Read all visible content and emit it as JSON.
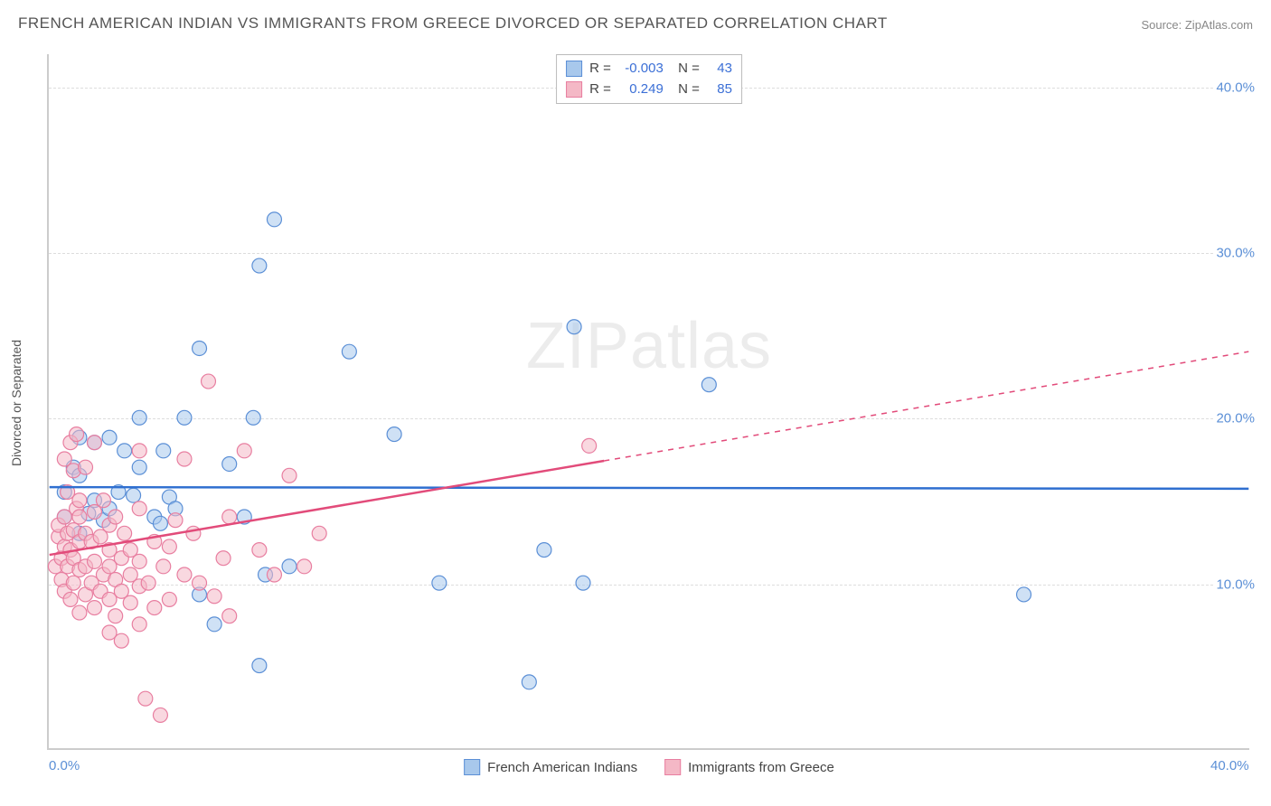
{
  "title": "FRENCH AMERICAN INDIAN VS IMMIGRANTS FROM GREECE DIVORCED OR SEPARATED CORRELATION CHART",
  "source": "Source: ZipAtlas.com",
  "ylabel": "Divorced or Separated",
  "watermark": "ZIPatlas",
  "chart": {
    "type": "scatter",
    "xlim": [
      0,
      40
    ],
    "ylim": [
      0,
      42
    ],
    "xticks": [
      {
        "v": 0,
        "label": "0.0%"
      },
      {
        "v": 40,
        "label": "40.0%"
      }
    ],
    "yticks": [
      {
        "v": 10,
        "label": "10.0%"
      },
      {
        "v": 20,
        "label": "20.0%"
      },
      {
        "v": 30,
        "label": "30.0%"
      },
      {
        "v": 40,
        "label": "40.0%"
      }
    ],
    "marker_radius": 8,
    "marker_opacity": 0.55,
    "background_color": "#ffffff",
    "grid_color": "#dddddd"
  },
  "series": [
    {
      "name": "French American Indians",
      "fill": "#a8c8ec",
      "stroke": "#5b8fd6",
      "line_color": "#2f6fd0",
      "R": "-0.003",
      "N": "43",
      "trend": {
        "x1": 0,
        "y1": 15.8,
        "x2": 40,
        "y2": 15.7,
        "extrapolate_from": 40
      },
      "points": [
        [
          0.5,
          14.0
        ],
        [
          0.5,
          15.5
        ],
        [
          0.8,
          17.0
        ],
        [
          1.0,
          13.0
        ],
        [
          1.0,
          16.5
        ],
        [
          1.0,
          18.8
        ],
        [
          1.3,
          14.2
        ],
        [
          1.5,
          15.0
        ],
        [
          1.5,
          18.5
        ],
        [
          1.8,
          13.8
        ],
        [
          2.0,
          14.5
        ],
        [
          2.0,
          18.8
        ],
        [
          2.3,
          15.5
        ],
        [
          2.5,
          18.0
        ],
        [
          2.8,
          15.3
        ],
        [
          3.0,
          17.0
        ],
        [
          3.0,
          20.0
        ],
        [
          3.5,
          14.0
        ],
        [
          3.7,
          13.6
        ],
        [
          3.8,
          18.0
        ],
        [
          4.0,
          15.2
        ],
        [
          4.2,
          14.5
        ],
        [
          4.5,
          20.0
        ],
        [
          5.0,
          9.3
        ],
        [
          5.0,
          24.2
        ],
        [
          5.5,
          7.5
        ],
        [
          6.0,
          17.2
        ],
        [
          6.5,
          14.0
        ],
        [
          6.8,
          20.0
        ],
        [
          7.0,
          5.0
        ],
        [
          7.0,
          29.2
        ],
        [
          7.2,
          10.5
        ],
        [
          7.5,
          32.0
        ],
        [
          8.0,
          11.0
        ],
        [
          10.0,
          24.0
        ],
        [
          11.5,
          19.0
        ],
        [
          13.0,
          10.0
        ],
        [
          16.0,
          4.0
        ],
        [
          16.5,
          12.0
        ],
        [
          17.5,
          25.5
        ],
        [
          22.0,
          22.0
        ],
        [
          32.5,
          9.3
        ],
        [
          17.8,
          10.0
        ]
      ]
    },
    {
      "name": "Immigrants from Greece",
      "fill": "#f4b8c6",
      "stroke": "#e87ea0",
      "line_color": "#e24b7a",
      "R": "0.249",
      "N": "85",
      "trend": {
        "x1": 0,
        "y1": 11.7,
        "x2": 40,
        "y2": 24.0,
        "extrapolate_from": 18.5
      },
      "points": [
        [
          0.2,
          11.0
        ],
        [
          0.3,
          12.8
        ],
        [
          0.3,
          13.5
        ],
        [
          0.4,
          11.5
        ],
        [
          0.4,
          10.2
        ],
        [
          0.5,
          9.5
        ],
        [
          0.5,
          12.2
        ],
        [
          0.5,
          14.0
        ],
        [
          0.5,
          17.5
        ],
        [
          0.6,
          11.0
        ],
        [
          0.6,
          13.0
        ],
        [
          0.6,
          15.5
        ],
        [
          0.7,
          9.0
        ],
        [
          0.7,
          12.0
        ],
        [
          0.7,
          18.5
        ],
        [
          0.8,
          10.0
        ],
        [
          0.8,
          11.5
        ],
        [
          0.8,
          13.2
        ],
        [
          0.8,
          16.8
        ],
        [
          0.9,
          14.5
        ],
        [
          0.9,
          19.0
        ],
        [
          1.0,
          8.2
        ],
        [
          1.0,
          10.8
        ],
        [
          1.0,
          12.5
        ],
        [
          1.0,
          14.0
        ],
        [
          1.0,
          15.0
        ],
        [
          1.2,
          9.3
        ],
        [
          1.2,
          11.0
        ],
        [
          1.2,
          13.0
        ],
        [
          1.2,
          17.0
        ],
        [
          1.4,
          10.0
        ],
        [
          1.4,
          12.5
        ],
        [
          1.5,
          8.5
        ],
        [
          1.5,
          11.3
        ],
        [
          1.5,
          14.3
        ],
        [
          1.5,
          18.5
        ],
        [
          1.7,
          9.5
        ],
        [
          1.7,
          12.8
        ],
        [
          1.8,
          10.5
        ],
        [
          1.8,
          15.0
        ],
        [
          2.0,
          7.0
        ],
        [
          2.0,
          9.0
        ],
        [
          2.0,
          11.0
        ],
        [
          2.0,
          12.0
        ],
        [
          2.0,
          13.5
        ],
        [
          2.2,
          8.0
        ],
        [
          2.2,
          10.2
        ],
        [
          2.2,
          14.0
        ],
        [
          2.4,
          6.5
        ],
        [
          2.4,
          9.5
        ],
        [
          2.4,
          11.5
        ],
        [
          2.5,
          13.0
        ],
        [
          2.7,
          8.8
        ],
        [
          2.7,
          10.5
        ],
        [
          2.7,
          12.0
        ],
        [
          3.0,
          7.5
        ],
        [
          3.0,
          9.8
        ],
        [
          3.0,
          11.3
        ],
        [
          3.0,
          14.5
        ],
        [
          3.0,
          18.0
        ],
        [
          3.2,
          3.0
        ],
        [
          3.3,
          10.0
        ],
        [
          3.5,
          12.5
        ],
        [
          3.5,
          8.5
        ],
        [
          3.7,
          2.0
        ],
        [
          3.8,
          11.0
        ],
        [
          4.0,
          12.2
        ],
        [
          4.0,
          9.0
        ],
        [
          4.2,
          13.8
        ],
        [
          4.5,
          10.5
        ],
        [
          4.5,
          17.5
        ],
        [
          4.8,
          13.0
        ],
        [
          5.0,
          10.0
        ],
        [
          5.3,
          22.2
        ],
        [
          5.5,
          9.2
        ],
        [
          5.8,
          11.5
        ],
        [
          6.0,
          8.0
        ],
        [
          6.0,
          14.0
        ],
        [
          6.5,
          18.0
        ],
        [
          7.0,
          12.0
        ],
        [
          7.5,
          10.5
        ],
        [
          8.0,
          16.5
        ],
        [
          8.5,
          11.0
        ],
        [
          9.0,
          13.0
        ],
        [
          18.0,
          18.3
        ]
      ]
    }
  ]
}
